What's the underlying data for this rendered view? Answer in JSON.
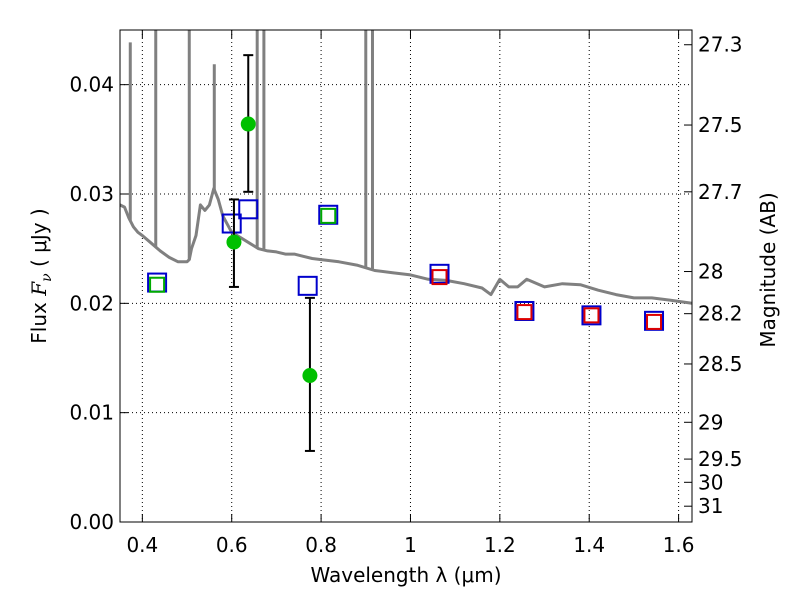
{
  "chart_data": {
    "type": "scatter",
    "title": "",
    "xlabel": "Wavelength  λ (μm)",
    "ylabel_prefix": "Flux  ",
    "ylabel_symbol": "F",
    "ylabel_subscript": "ν",
    "ylabel_suffix": "  ( μJy )",
    "y2label": "Magnitude (AB)",
    "xlim": [
      0.35,
      1.63
    ],
    "ylim": [
      0.0,
      0.045
    ],
    "grid": true,
    "xticks": [
      0.4,
      0.6,
      0.8,
      1.0,
      1.2,
      1.4,
      1.6
    ],
    "xtick_labels": [
      "0.4",
      "0.6",
      "0.8",
      "1",
      "1.2",
      "1.4",
      "1.6"
    ],
    "yticks": [
      0.0,
      0.01,
      0.02,
      0.03,
      0.04
    ],
    "ytick_labels": [
      "0.00",
      "0.01",
      "0.02",
      "0.03",
      "0.04"
    ],
    "magnitude_ticks": [
      27.3,
      27.5,
      27.7,
      28,
      28.2,
      28.5,
      29,
      29.5,
      30,
      31
    ],
    "magnitude_tick_labels": [
      "27.3",
      "27.5",
      "27.7",
      "28",
      "28.2",
      "28.5",
      "29",
      "29.5",
      "30",
      "31"
    ],
    "colors": {
      "model": "#808080",
      "observed": "#00c000",
      "blue_box": "#0000cc",
      "red_box": "#dd0000",
      "green_box": "#00aa00",
      "errorbar": "#000000"
    },
    "series": [
      {
        "kind": "model_spectrum",
        "x": [
          0.35,
          0.36,
          0.37,
          0.38,
          0.39,
          0.4,
          0.42,
          0.44,
          0.46,
          0.48,
          0.5,
          0.505,
          0.51,
          0.52,
          0.53,
          0.54,
          0.55,
          0.56,
          0.57,
          0.58,
          0.6,
          0.62,
          0.64,
          0.66,
          0.68,
          0.7,
          0.72,
          0.74,
          0.76,
          0.78,
          0.8,
          0.84,
          0.88,
          0.92,
          0.96,
          1.0,
          1.04,
          1.08,
          1.12,
          1.16,
          1.18,
          1.2,
          1.22,
          1.24,
          1.26,
          1.3,
          1.34,
          1.38,
          1.42,
          1.46,
          1.5,
          1.54,
          1.58,
          1.63
        ],
        "y": [
          0.029,
          0.0288,
          0.0278,
          0.027,
          0.0265,
          0.0262,
          0.0255,
          0.0248,
          0.0242,
          0.0238,
          0.0238,
          0.024,
          0.025,
          0.0262,
          0.029,
          0.0285,
          0.029,
          0.0305,
          0.0295,
          0.028,
          0.0265,
          0.026,
          0.0255,
          0.025,
          0.0248,
          0.0247,
          0.0245,
          0.0245,
          0.0243,
          0.0241,
          0.024,
          0.0238,
          0.0235,
          0.023,
          0.0228,
          0.0226,
          0.0222,
          0.0221,
          0.0218,
          0.0214,
          0.0208,
          0.0222,
          0.0215,
          0.0215,
          0.0222,
          0.0215,
          0.0218,
          0.0217,
          0.0212,
          0.0208,
          0.0205,
          0.0205,
          0.0203,
          0.02
        ]
      },
      {
        "kind": "model_emission_lines",
        "lines": [
          {
            "x": 0.373,
            "peak": 0.0435
          },
          {
            "x": 0.43,
            "peak": 0.045
          },
          {
            "x": 0.505,
            "peak": 0.045
          },
          {
            "x": 0.561,
            "peak": 0.0415
          },
          {
            "x": 0.657,
            "peak": 0.045
          },
          {
            "x": 0.672,
            "peak": 0.045
          },
          {
            "x": 0.9,
            "peak": 0.045
          },
          {
            "x": 0.915,
            "peak": 0.045
          }
        ]
      },
      {
        "kind": "observed",
        "x": [
          0.605,
          0.637,
          0.775
        ],
        "y": [
          0.0256,
          0.0364,
          0.0134
        ],
        "yerr_low": [
          0.0215,
          0.0302,
          0.0065
        ],
        "yerr_high": [
          0.0295,
          0.0427,
          0.0205
        ]
      },
      {
        "kind": "model_band_blue",
        "x": [
          0.433,
          0.6,
          0.637,
          0.77,
          0.816,
          1.065,
          1.255,
          1.405,
          1.545
        ],
        "y": [
          0.0219,
          0.0273,
          0.0286,
          0.0216,
          0.0281,
          0.0227,
          0.0193,
          0.0189,
          0.0184
        ]
      },
      {
        "kind": "model_band_green",
        "x": [
          0.433,
          0.816
        ],
        "y": [
          0.0217,
          0.028
        ]
      },
      {
        "kind": "model_band_red",
        "x": [
          1.065,
          1.255,
          1.405,
          1.545
        ],
        "y": [
          0.0224,
          0.0192,
          0.0189,
          0.0183
        ]
      }
    ]
  }
}
